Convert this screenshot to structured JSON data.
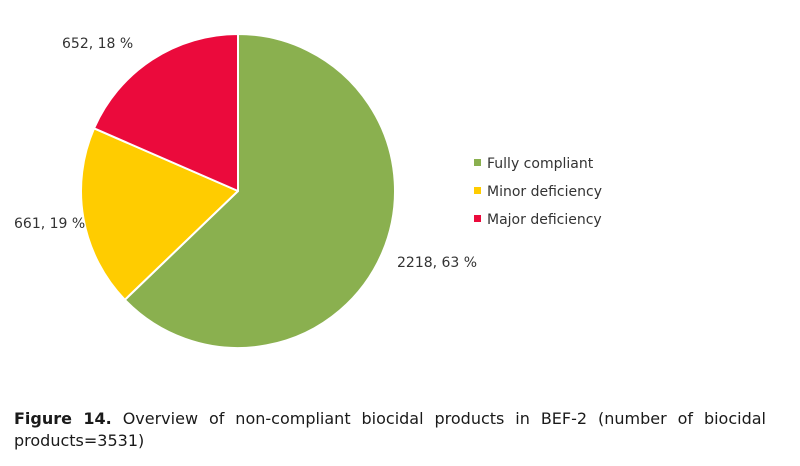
{
  "chart_data": {
    "type": "pie",
    "categories": [
      "Fully compliant",
      "Minor deficiency",
      "Major deficiency"
    ],
    "values": [
      2218,
      661,
      652
    ],
    "percentages": [
      63,
      19,
      18
    ],
    "data_labels": [
      "2218, 63 %",
      "661, 19 %",
      "652, 18 %"
    ],
    "colors": [
      "#8ab04f",
      "#ffcc00",
      "#eb0a3c"
    ],
    "legend_placement": "right",
    "start_angle": "12 o'clock, clockwise"
  },
  "caption": {
    "label": "Figure 14.",
    "text": " Overview of non-compliant biocidal products in BEF-2 (number of biocidal products=3531)"
  }
}
